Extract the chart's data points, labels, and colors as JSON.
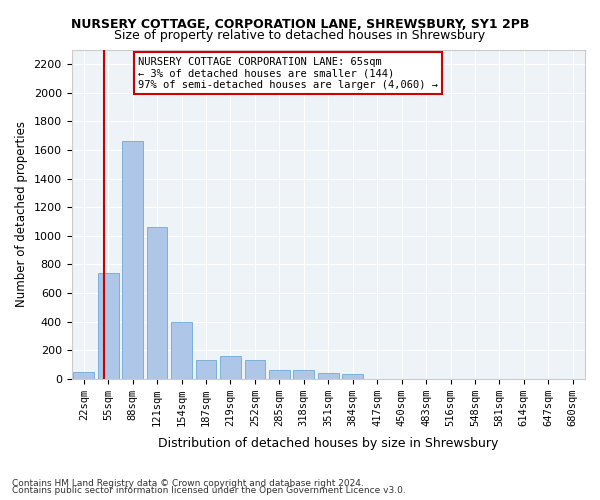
{
  "title": "NURSERY COTTAGE, CORPORATION LANE, SHREWSBURY, SY1 2PB",
  "subtitle": "Size of property relative to detached houses in Shrewsbury",
  "xlabel": "Distribution of detached houses by size in Shrewsbury",
  "ylabel": "Number of detached properties",
  "bar_color": "#aec6e8",
  "bar_edge_color": "#5a9fd4",
  "background_color": "#eef3f8",
  "grid_color": "#ffffff",
  "annotation_box_color": "#cc0000",
  "marker_line_color": "#cc0000",
  "categories": [
    "22sqm",
    "55sqm",
    "88sqm",
    "121sqm",
    "154sqm",
    "187sqm",
    "219sqm",
    "252sqm",
    "285sqm",
    "318sqm",
    "351sqm",
    "384sqm",
    "417sqm",
    "450sqm",
    "483sqm",
    "516sqm",
    "548sqm",
    "581sqm",
    "614sqm",
    "647sqm",
    "680sqm"
  ],
  "values": [
    50,
    740,
    1660,
    1060,
    400,
    130,
    160,
    130,
    60,
    60,
    40,
    30,
    0,
    0,
    0,
    0,
    0,
    0,
    0,
    0,
    0
  ],
  "ylim": [
    0,
    2300
  ],
  "yticks": [
    0,
    200,
    400,
    600,
    800,
    1000,
    1200,
    1400,
    1600,
    1800,
    2000,
    2200
  ],
  "red_line_x": 0.833,
  "annotation_line1": "NURSERY COTTAGE CORPORATION LANE: 65sqm",
  "annotation_line2": "← 3% of detached houses are smaller (144)",
  "annotation_line3": "97% of semi-detached houses are larger (4,060) →",
  "footnote1": "Contains HM Land Registry data © Crown copyright and database right 2024.",
  "footnote2": "Contains public sector information licensed under the Open Government Licence v3.0."
}
